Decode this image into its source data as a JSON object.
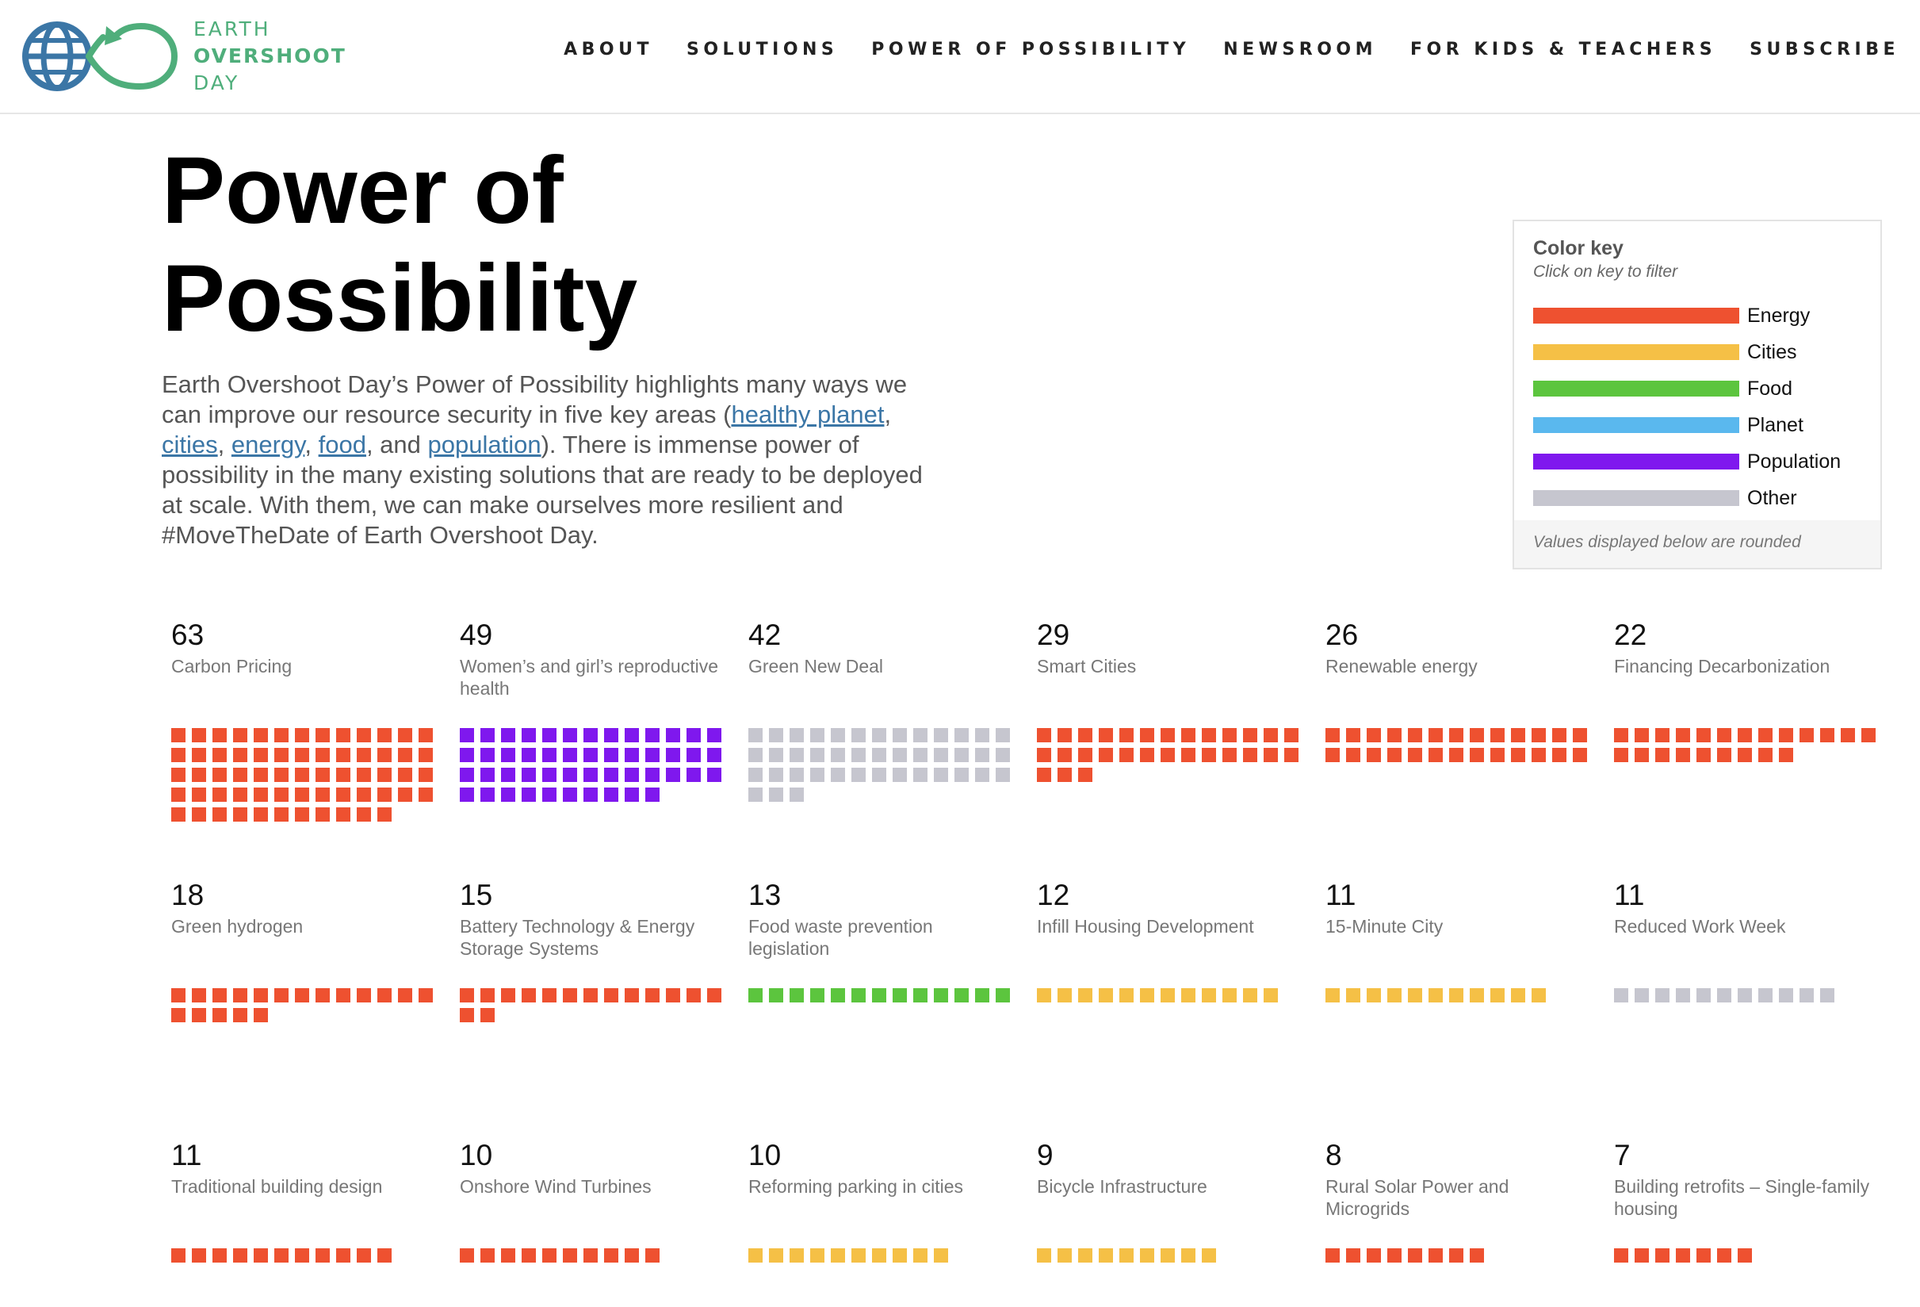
{
  "header": {
    "logo": {
      "line1": "EARTH",
      "line2": "OVERSHOOT",
      "line3": "DAY",
      "icon": "globe-infinity-icon",
      "color": "#4fae7b",
      "globe_color": "#3b76a6"
    },
    "nav": [
      {
        "name": "nav-about",
        "label": "ABOUT"
      },
      {
        "name": "nav-solutions",
        "label": "SOLUTIONS"
      },
      {
        "name": "nav-power-of-possibility",
        "label": "POWER OF POSSIBILITY"
      },
      {
        "name": "nav-newsroom",
        "label": "NEWSROOM"
      },
      {
        "name": "nav-for-kids-teachers",
        "label": "FOR KIDS & TEACHERS"
      },
      {
        "name": "nav-subscribe",
        "label": "SUBSCRIBE"
      }
    ]
  },
  "page": {
    "title_line1": "Power of",
    "title_line2": "Possibility",
    "intro": {
      "part1": "Earth Overshoot Day’s Power of Possibility highlights many ways we can improve our resource security in five key areas (",
      "link_planet": "healthy planet",
      "sep1": ", ",
      "link_cities": "cities",
      "sep2": ", ",
      "link_energy": "energy",
      "sep3": ", ",
      "link_food": "food",
      "sep4": ", and ",
      "link_population": "population",
      "part2": "). There is immense power of possibility in the many existing solutions that are ready to be deployed at scale. With them, we can make ourselves more resilient and #MoveTheDate of Earth Overshoot Day."
    }
  },
  "color_key": {
    "title": "Color key",
    "subtitle": "Click on key to filter",
    "footer": "Values displayed below are rounded",
    "items": [
      {
        "name": "energy",
        "label": "Energy",
        "color": "#ee5130"
      },
      {
        "name": "cities",
        "label": "Cities",
        "color": "#f5c046"
      },
      {
        "name": "food",
        "label": "Food",
        "color": "#5cc53e"
      },
      {
        "name": "planet",
        "label": "Planet",
        "color": "#5ab8ee"
      },
      {
        "name": "population",
        "label": "Population",
        "color": "#7f18ee"
      },
      {
        "name": "other",
        "label": "Other",
        "color": "#c6c6cf"
      }
    ]
  },
  "solutions": [
    {
      "value": 63,
      "label": "Carbon Pricing",
      "category": "energy"
    },
    {
      "value": 49,
      "label": "Women’s and girl’s reproductive health",
      "category": "population"
    },
    {
      "value": 42,
      "label": "Green New Deal",
      "category": "other"
    },
    {
      "value": 29,
      "label": "Smart Cities",
      "category": "energy"
    },
    {
      "value": 26,
      "label": "Renewable energy",
      "category": "energy"
    },
    {
      "value": 22,
      "label": "Financing Decarbonization",
      "category": "energy"
    },
    {
      "value": 18,
      "label": "Green hydrogen",
      "category": "energy"
    },
    {
      "value": 15,
      "label": "Battery Technology & Energy Storage Systems",
      "category": "energy"
    },
    {
      "value": 13,
      "label": "Food waste prevention legislation",
      "category": "food"
    },
    {
      "value": 12,
      "label": "Infill Housing Development",
      "category": "cities"
    },
    {
      "value": 11,
      "label": "15-Minute City",
      "category": "cities"
    },
    {
      "value": 11,
      "label": "Reduced Work Week",
      "category": "other"
    },
    {
      "value": 11,
      "label": "Traditional building design",
      "category": "energy"
    },
    {
      "value": 10,
      "label": "Onshore Wind Turbines",
      "category": "energy"
    },
    {
      "value": 10,
      "label": "Reforming parking in cities",
      "category": "cities"
    },
    {
      "value": 9,
      "label": "Bicycle Infrastructure",
      "category": "cities"
    },
    {
      "value": 8,
      "label": "Rural Solar Power and Microgrids",
      "category": "energy"
    },
    {
      "value": 7,
      "label": "Building retrofits – Single-family housing",
      "category": "energy"
    }
  ]
}
